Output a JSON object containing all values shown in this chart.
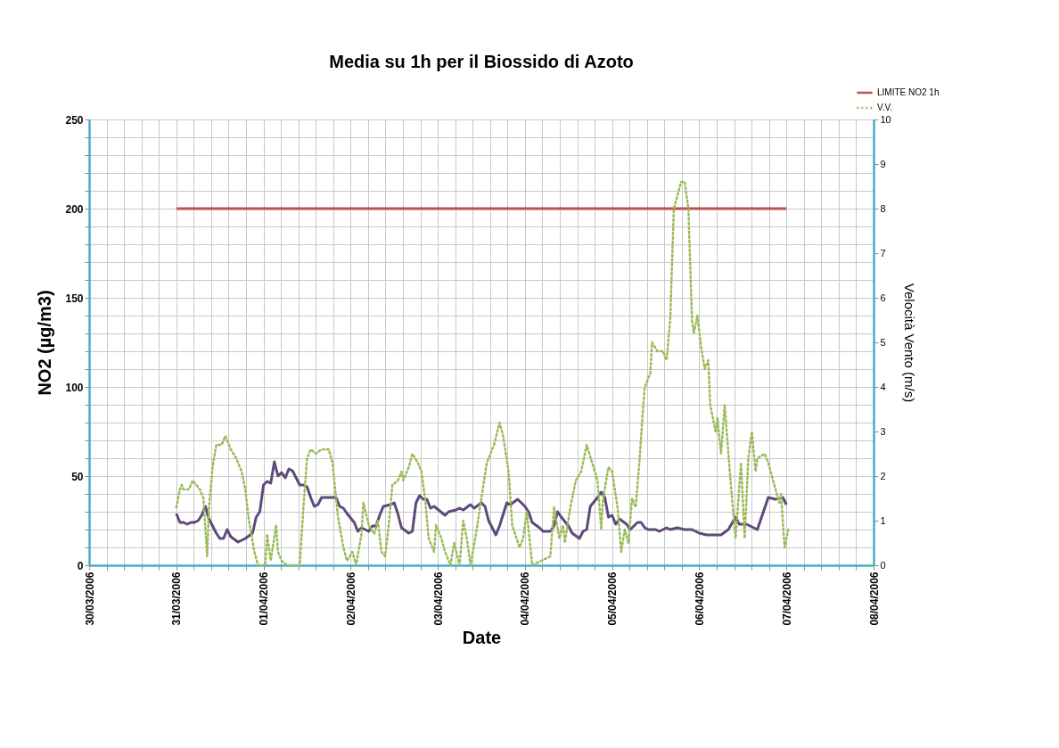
{
  "chart_data": {
    "type": "line",
    "title": "Media su 1h per il Biossido di Azoto",
    "xlabel": "Date",
    "ylabel": "NO2 (µg/m3)",
    "y2label": "Velocità Vento (m/s)",
    "xlim": [
      "2006-03-30",
      "2006-04-08"
    ],
    "xticks": [
      {
        "value": "2006-03-30T00:00",
        "label": "30/03/2006"
      },
      {
        "value": "2006-03-30T04:48",
        "label": null
      },
      {
        "value": "2006-03-30T09:36",
        "label": null
      },
      {
        "value": "2006-03-30T14:24",
        "label": null
      },
      {
        "value": "2006-03-30T19:12",
        "label": null
      },
      {
        "value": "2006-03-31T00:00",
        "label": "31/03/2006"
      },
      {
        "value": "2006-03-31T04:48",
        "label": null
      },
      {
        "value": "2006-03-31T09:36",
        "label": null
      },
      {
        "value": "2006-03-31T14:24",
        "label": null
      },
      {
        "value": "2006-03-31T19:12",
        "label": null
      },
      {
        "value": "2006-04-01T00:00",
        "label": "01/04/2006"
      },
      {
        "value": "2006-04-01T04:48",
        "label": null
      },
      {
        "value": "2006-04-01T09:36",
        "label": null
      },
      {
        "value": "2006-04-01T14:24",
        "label": null
      },
      {
        "value": "2006-04-01T19:12",
        "label": null
      },
      {
        "value": "2006-04-02T00:00",
        "label": "02/04/2006"
      },
      {
        "value": "2006-04-02T04:48",
        "label": null
      },
      {
        "value": "2006-04-02T09:36",
        "label": null
      },
      {
        "value": "2006-04-02T14:24",
        "label": null
      },
      {
        "value": "2006-04-02T19:12",
        "label": null
      },
      {
        "value": "2006-04-03T00:00",
        "label": "03/04/2006"
      },
      {
        "value": "2006-04-03T04:48",
        "label": null
      },
      {
        "value": "2006-04-03T09:36",
        "label": null
      },
      {
        "value": "2006-04-03T14:24",
        "label": null
      },
      {
        "value": "2006-04-03T19:12",
        "label": null
      },
      {
        "value": "2006-04-04T00:00",
        "label": "04/04/2006"
      },
      {
        "value": "2006-04-04T04:48",
        "label": null
      },
      {
        "value": "2006-04-04T09:36",
        "label": null
      },
      {
        "value": "2006-04-04T14:24",
        "label": null
      },
      {
        "value": "2006-04-04T19:12",
        "label": null
      },
      {
        "value": "2006-04-05T00:00",
        "label": "05/04/2006"
      },
      {
        "value": "2006-04-05T04:48",
        "label": null
      },
      {
        "value": "2006-04-05T09:36",
        "label": null
      },
      {
        "value": "2006-04-05T14:24",
        "label": null
      },
      {
        "value": "2006-04-05T19:12",
        "label": null
      },
      {
        "value": "2006-04-06T00:00",
        "label": "06/04/2006"
      },
      {
        "value": "2006-04-06T04:48",
        "label": null
      },
      {
        "value": "2006-04-06T09:36",
        "label": null
      },
      {
        "value": "2006-04-06T14:24",
        "label": null
      },
      {
        "value": "2006-04-06T19:12",
        "label": null
      },
      {
        "value": "2006-04-07T00:00",
        "label": "07/04/2006"
      },
      {
        "value": "2006-04-07T04:48",
        "label": null
      },
      {
        "value": "2006-04-07T09:36",
        "label": null
      },
      {
        "value": "2006-04-07T14:24",
        "label": null
      },
      {
        "value": "2006-04-07T19:12",
        "label": null
      },
      {
        "value": "2006-04-08T00:00",
        "label": "08/04/2006"
      }
    ],
    "ylim": [
      0,
      250
    ],
    "yticks": [
      0,
      {
        "value": 10,
        "label": null
      },
      {
        "value": 20,
        "label": null
      },
      {
        "value": 30,
        "label": null
      },
      {
        "value": 40,
        "label": null
      },
      50,
      {
        "value": 60,
        "label": null
      },
      {
        "value": 70,
        "label": null
      },
      {
        "value": 80,
        "label": null
      },
      {
        "value": 90,
        "label": null
      },
      100,
      {
        "value": 110,
        "label": null
      },
      {
        "value": 120,
        "label": null
      },
      {
        "value": 130,
        "label": null
      },
      {
        "value": 140,
        "label": null
      },
      150,
      {
        "value": 160,
        "label": null
      },
      {
        "value": 170,
        "label": null
      },
      {
        "value": 180,
        "label": null
      },
      {
        "value": 190,
        "label": null
      },
      200,
      {
        "value": 210,
        "label": null
      },
      {
        "value": 220,
        "label": null
      },
      {
        "value": 230,
        "label": null
      },
      {
        "value": 240,
        "label": null
      },
      250
    ],
    "y2lim": [
      0,
      10
    ],
    "y2ticks": [
      0,
      1,
      2,
      3,
      4,
      5,
      6,
      7,
      8,
      9,
      10
    ],
    "grid": true,
    "legend": "top right",
    "series": [
      {
        "color": "#5f497a",
        "line_style": "solid",
        "x": [
          "2006-03-31T00:00",
          "2006-03-31T01:00",
          "2006-03-31T02:00",
          "2006-03-31T03:00",
          "2006-03-31T04:00",
          "2006-03-31T05:00",
          "2006-03-31T06:00",
          "2006-03-31T07:00",
          "2006-03-31T08:00",
          "2006-03-31T09:00",
          "2006-03-31T10:00",
          "2006-03-31T11:00",
          "2006-03-31T12:00",
          "2006-03-31T13:00",
          "2006-03-31T14:00",
          "2006-03-31T15:00",
          "2006-03-31T17:00",
          "2006-03-31T18:00",
          "2006-03-31T19:00",
          "2006-03-31T21:00",
          "2006-03-31T22:00",
          "2006-03-31T23:00",
          "2006-04-01T00:00",
          "2006-04-01T01:00",
          "2006-04-01T02:00",
          "2006-04-01T03:00",
          "2006-04-01T04:00",
          "2006-04-01T05:00",
          "2006-04-01T06:00",
          "2006-04-01T07:00",
          "2006-04-01T08:00",
          "2006-04-01T10:00",
          "2006-04-01T11:00",
          "2006-04-01T12:00",
          "2006-04-01T13:00",
          "2006-04-01T14:00",
          "2006-04-01T15:00",
          "2006-04-01T16:00",
          "2006-04-01T20:00",
          "2006-04-01T21:00",
          "2006-04-01T22:00",
          "2006-04-01T23:00",
          "2006-04-02T01:00",
          "2006-04-02T02:00",
          "2006-04-02T03:00",
          "2006-04-02T05:00",
          "2006-04-02T06:00",
          "2006-04-02T07:00",
          "2006-04-02T08:00",
          "2006-04-02T09:00",
          "2006-04-02T11:00",
          "2006-04-02T12:00",
          "2006-04-02T13:00",
          "2006-04-02T14:00",
          "2006-04-02T16:00",
          "2006-04-02T17:00",
          "2006-04-02T18:00",
          "2006-04-02T19:00",
          "2006-04-02T20:00",
          "2006-04-02T21:00",
          "2006-04-02T22:00",
          "2006-04-02T23:00",
          "2006-04-03T02:00",
          "2006-04-03T03:00",
          "2006-04-03T05:00",
          "2006-04-03T06:00",
          "2006-04-03T07:00",
          "2006-04-03T09:00",
          "2006-04-03T10:00",
          "2006-04-03T12:00",
          "2006-04-03T13:00",
          "2006-04-03T14:00",
          "2006-04-03T16:00",
          "2006-04-03T17:00",
          "2006-04-03T19:00",
          "2006-04-03T20:00",
          "2006-04-03T22:00",
          "2006-04-04T00:00",
          "2006-04-04T01:00",
          "2006-04-04T02:00",
          "2006-04-04T04:00",
          "2006-04-04T05:00",
          "2006-04-04T07:00",
          "2006-04-04T08:00",
          "2006-04-04T09:00",
          "2006-04-04T10:00",
          "2006-04-04T12:00",
          "2006-04-04T13:00",
          "2006-04-04T15:00",
          "2006-04-04T16:00",
          "2006-04-04T17:00",
          "2006-04-04T18:00",
          "2006-04-04T20:00",
          "2006-04-04T21:00",
          "2006-04-04T22:00",
          "2006-04-04T23:00",
          "2006-04-05T00:00",
          "2006-04-05T01:00",
          "2006-04-05T02:00",
          "2006-04-05T04:00",
          "2006-04-05T05:00",
          "2006-04-05T07:00",
          "2006-04-05T08:00",
          "2006-04-05T09:00",
          "2006-04-05T10:00",
          "2006-04-05T12:00",
          "2006-04-05T13:00",
          "2006-04-05T15:00",
          "2006-04-05T16:00",
          "2006-04-05T18:00",
          "2006-04-05T20:00",
          "2006-04-05T22:00",
          "2006-04-06T00:00",
          "2006-04-06T02:00",
          "2006-04-06T04:00",
          "2006-04-06T06:00",
          "2006-04-06T08:00",
          "2006-04-06T10:00",
          "2006-04-06T11:00",
          "2006-04-06T13:00",
          "2006-04-06T16:00",
          "2006-04-06T17:00",
          "2006-04-06T19:00",
          "2006-04-06T21:00",
          "2006-04-06T23:00",
          "2006-04-07T00:00"
        ],
        "values": [
          29,
          24,
          24,
          23,
          24,
          24,
          25,
          28,
          33,
          26,
          22,
          18,
          15,
          15,
          20,
          16,
          13,
          14,
          15,
          18,
          27,
          30,
          45,
          47,
          46,
          58,
          50,
          52,
          49,
          54,
          53,
          45,
          45,
          44,
          38,
          33,
          34,
          38,
          38,
          33,
          32,
          29,
          24,
          19,
          21,
          19,
          22,
          22,
          28,
          33,
          34,
          35,
          29,
          21,
          18,
          19,
          35,
          39,
          37,
          37,
          32,
          33,
          28,
          30,
          31,
          32,
          31,
          34,
          32,
          35,
          33,
          25,
          17,
          22,
          35,
          34,
          37,
          33,
          30,
          24,
          21,
          19,
          19,
          22,
          30,
          27,
          22,
          18,
          15,
          19,
          20,
          33,
          38,
          41,
          38,
          27,
          28,
          23,
          26,
          23,
          20,
          24,
          24,
          21,
          20,
          20,
          19,
          21,
          20,
          21,
          20,
          20,
          18,
          17,
          17,
          17,
          20,
          27,
          23,
          23,
          20,
          26,
          38,
          37,
          38,
          34
        ]
      },
      {
        "name": "LIMITE NO2 1h",
        "color": "#c0504d",
        "line_style": "solid",
        "x": [
          "2006-03-31T00:00",
          "2006-04-07T00:00"
        ],
        "values": [
          200,
          200
        ]
      },
      {
        "name": "V.V.",
        "axis": "y2",
        "color": "#9bbb59",
        "line_style": "dotted",
        "x": [
          "2006-03-31T00:00",
          "2006-03-31T01:00",
          "2006-03-31T01:30",
          "2006-03-31T02:00",
          "2006-03-31T03:30",
          "2006-03-31T04:30",
          "2006-03-31T05:30",
          "2006-03-31T06:30",
          "2006-03-31T07:30",
          "2006-03-31T08:30",
          "2006-03-31T09:00",
          "2006-03-31T10:00",
          "2006-03-31T11:00",
          "2006-03-31T12:30",
          "2006-03-31T13:30",
          "2006-03-31T15:00",
          "2006-03-31T16:30",
          "2006-03-31T18:00",
          "2006-03-31T19:00",
          "2006-03-31T20:00",
          "2006-03-31T21:30",
          "2006-03-31T22:30",
          "2006-04-01T00:30",
          "2006-04-01T01:00",
          "2006-04-01T02:00",
          "2006-04-01T03:30",
          "2006-04-01T04:00",
          "2006-04-01T05:00",
          "2006-04-01T06:30",
          "2006-04-01T10:00",
          "2006-04-01T11:00",
          "2006-04-01T12:00",
          "2006-04-01T13:00",
          "2006-04-01T14:30",
          "2006-04-01T16:00",
          "2006-04-01T18:00",
          "2006-04-01T19:00",
          "2006-04-01T20:30",
          "2006-04-01T22:00",
          "2006-04-01T23:00",
          "2006-04-02T00:30",
          "2006-04-02T01:30",
          "2006-04-02T03:00",
          "2006-04-02T03:30",
          "2006-04-02T05:00",
          "2006-04-02T06:30",
          "2006-04-02T07:30",
          "2006-04-02T08:30",
          "2006-04-02T09:30",
          "2006-04-02T10:30",
          "2006-04-02T11:30",
          "2006-04-02T13:00",
          "2006-04-02T14:00",
          "2006-04-02T14:30",
          "2006-04-02T16:00",
          "2006-04-02T17:00",
          "2006-04-02T18:30",
          "2006-04-02T19:30",
          "2006-04-02T20:30",
          "2006-04-02T21:30",
          "2006-04-02T23:00",
          "2006-04-02T23:30",
          "2006-04-03T01:00",
          "2006-04-03T02:00",
          "2006-04-03T03:30",
          "2006-04-03T04:30",
          "2006-04-03T06:00",
          "2006-04-03T07:00",
          "2006-04-03T08:00",
          "2006-04-03T09:00",
          "2006-04-03T10:30",
          "2006-04-03T12:00",
          "2006-04-03T13:30",
          "2006-04-03T15:30",
          "2006-04-03T17:00",
          "2006-04-03T18:00",
          "2006-04-03T19:30",
          "2006-04-03T20:30",
          "2006-04-03T22:30",
          "2006-04-03T23:30",
          "2006-04-04T00:30",
          "2006-04-04T02:00",
          "2006-04-04T04:30",
          "2006-04-04T07:00",
          "2006-04-04T08:00",
          "2006-04-04T09:30",
          "2006-04-04T10:30",
          "2006-04-04T11:00",
          "2006-04-04T12:30",
          "2006-04-04T14:00",
          "2006-04-04T15:30",
          "2006-04-04T17:00",
          "2006-04-04T18:30",
          "2006-04-04T20:00",
          "2006-04-04T21:00",
          "2006-04-04T21:30",
          "2006-04-04T23:00",
          "2006-04-05T00:00",
          "2006-04-05T01:30",
          "2006-04-05T02:30",
          "2006-04-05T03:30",
          "2006-04-05T04:30",
          "2006-04-05T05:30",
          "2006-04-05T06:30",
          "2006-04-05T07:30",
          "2006-04-05T08:30",
          "2006-04-05T09:00",
          "2006-04-05T10:30",
          "2006-04-05T11:00",
          "2006-04-05T12:30",
          "2006-04-05T14:00",
          "2006-04-05T15:00",
          "2006-04-05T16:00",
          "2006-04-05T17:00",
          "2006-04-05T18:00",
          "2006-04-05T19:00",
          "2006-04-05T20:00",
          "2006-04-05T21:00",
          "2006-04-05T22:00",
          "2006-04-05T22:30",
          "2006-04-05T23:30",
          "2006-04-06T00:30",
          "2006-04-06T01:30",
          "2006-04-06T02:30",
          "2006-04-06T03:00",
          "2006-04-06T04:30",
          "2006-04-06T05:00",
          "2006-04-06T06:00",
          "2006-04-06T07:00",
          "2006-04-06T08:30",
          "2006-04-06T10:00",
          "2006-04-06T11:30",
          "2006-04-06T12:30",
          "2006-04-06T13:30",
          "2006-04-06T14:30",
          "2006-04-06T15:30",
          "2006-04-06T16:00",
          "2006-04-06T18:00",
          "2006-04-06T19:00",
          "2006-04-06T21:00",
          "2006-04-06T22:00",
          "2006-04-06T22:30",
          "2006-04-06T23:30",
          "2006-04-07T00:30"
        ],
        "values": [
          1.3,
          1.7,
          1.8,
          1.7,
          1.7,
          1.9,
          1.8,
          1.7,
          1.5,
          0.2,
          1.3,
          2.2,
          2.7,
          2.7,
          2.9,
          2.6,
          2.4,
          2.1,
          1.7,
          1.0,
          0.3,
          0,
          0,
          0.7,
          0.1,
          0.9,
          0.3,
          0.1,
          0,
          0,
          1.3,
          2.4,
          2.6,
          2.5,
          2.6,
          2.6,
          2.3,
          1.1,
          0.4,
          0.1,
          0.3,
          0,
          0.7,
          1.4,
          0.9,
          0.7,
          1.0,
          0.3,
          0.2,
          0.9,
          1.8,
          1.9,
          2.1,
          1.9,
          2.2,
          2.5,
          2.3,
          2.1,
          1.5,
          0.6,
          0.3,
          0.9,
          0.6,
          0.3,
          0,
          0.5,
          0,
          1.0,
          0.6,
          0,
          0.7,
          1.5,
          2.3,
          2.7,
          3.2,
          2.9,
          2.1,
          0.9,
          0.4,
          0.6,
          1.2,
          0,
          0.1,
          0.2,
          1.3,
          0.6,
          0.9,
          0.5,
          1.3,
          1.9,
          2.1,
          2.7,
          2.3,
          1.9,
          0.8,
          1.5,
          2.2,
          2.1,
          1.3,
          0.3,
          0.8,
          0.5,
          1.5,
          1.3,
          2.3,
          3.5,
          4.0,
          4.3,
          5.0,
          4.8,
          4.8,
          4.6,
          5.5,
          8.0,
          8.3,
          8.6,
          8.6,
          8.0,
          5.5,
          5.2,
          5.6,
          4.9,
          4.4,
          4.6,
          3.6,
          3.0,
          3.3,
          2.5,
          3.6,
          2.0,
          0.6,
          2.3,
          0.6,
          2.4,
          3.0,
          2.1,
          2.4,
          2.5,
          2.3,
          1.7,
          1.4,
          1.6,
          0.4,
          0.8
        ]
      }
    ]
  }
}
